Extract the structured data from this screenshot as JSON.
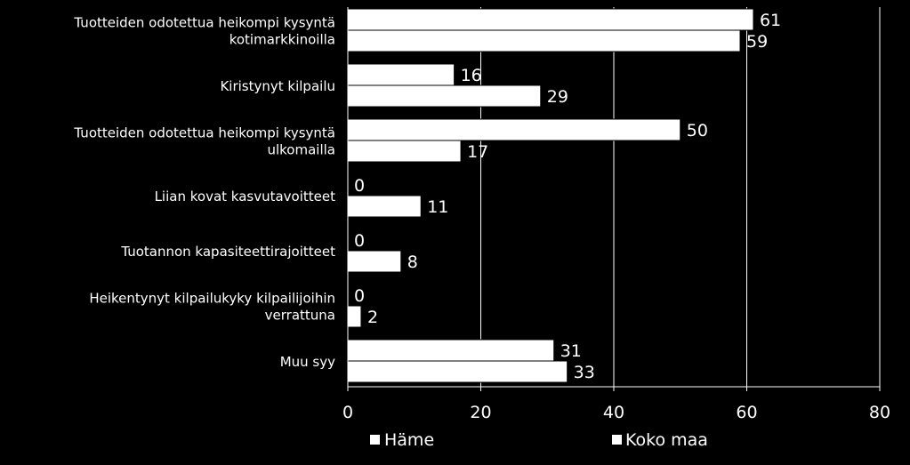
{
  "chart_data": {
    "type": "bar",
    "orientation": "horizontal",
    "categories": [
      [
        "Tuotteiden odotettua heikompi kysyntä",
        "kotimarkkinoilla"
      ],
      [
        "Kiristynyt kilpailu"
      ],
      [
        "Tuotteiden odotettua heikompi kysyntä",
        "ulkomailla"
      ],
      [
        "Liian kovat kasvutavoitteet"
      ],
      [
        "Tuotannon kapasiteettirajoitteet"
      ],
      [
        "Heikentynyt kilpailukyky kilpailijoihin",
        "verrattuna"
      ],
      [
        "Muu syy"
      ]
    ],
    "series": [
      {
        "name": "Häme",
        "values": [
          61,
          16,
          50,
          0,
          0,
          0,
          31
        ],
        "labels": [
          "61",
          "16",
          "50",
          "0",
          "0",
          "0",
          "31"
        ]
      },
      {
        "name": "Koko maa",
        "values": [
          59,
          29,
          17,
          11,
          8,
          2,
          33
        ],
        "labels": [
          "59",
          "29",
          "17",
          "11",
          "8",
          "2",
          "33"
        ]
      }
    ],
    "xlim": [
      0,
      80
    ],
    "xticks": [
      0,
      20,
      40,
      60,
      80
    ],
    "xtick_labels": [
      "0",
      "20",
      "40",
      "60",
      "80"
    ],
    "grid": true,
    "legend_position": "bottom",
    "colors": {
      "background": "#000000",
      "bar_fill": "#ffffff",
      "bar_border": "#000000",
      "grid": "#ffffff",
      "text": "#ffffff"
    }
  }
}
